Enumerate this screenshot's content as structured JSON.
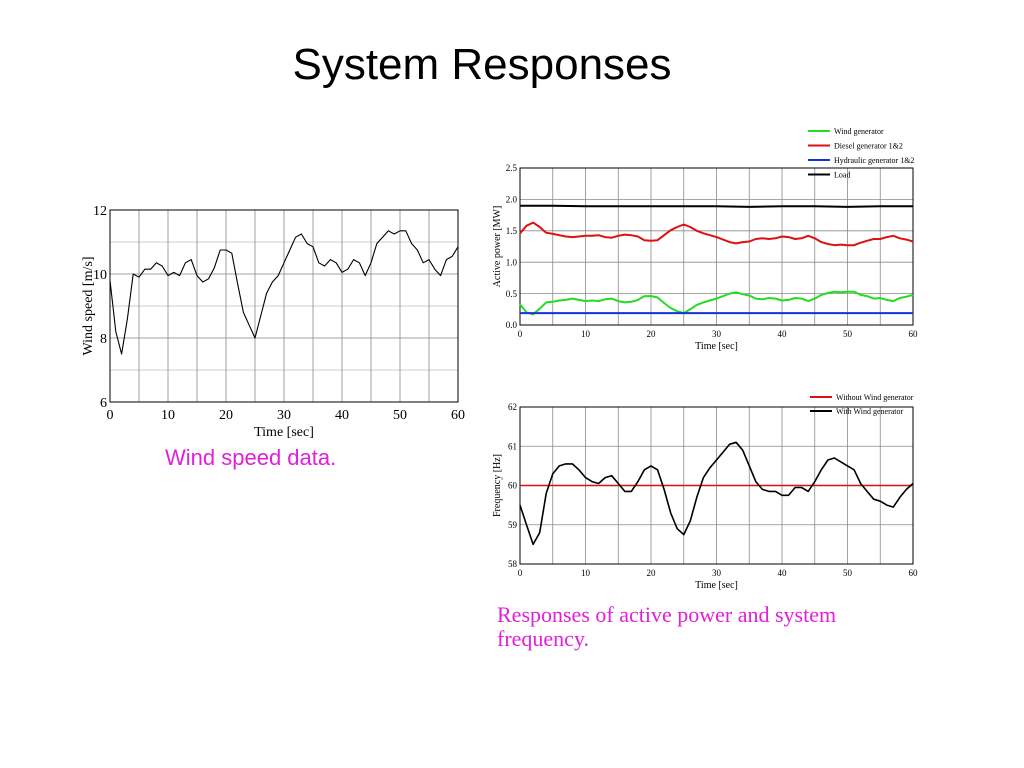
{
  "title": "System Responses",
  "captions": {
    "wind": "Wind speed data.",
    "responses": "Responses of active power and system frequency."
  },
  "chart_data": [
    {
      "type": "line",
      "title": "",
      "xlabel": "Time [sec]",
      "ylabel": "Wind speed [m/s]",
      "xlim": [
        0,
        60
      ],
      "ylim": [
        6,
        12
      ],
      "xticks": [
        0,
        10,
        20,
        30,
        40,
        50,
        60
      ],
      "yticks": [
        6,
        8,
        10,
        12
      ],
      "grid": true,
      "series": [
        {
          "color": "#000000",
          "x": [
            0,
            1,
            2,
            3,
            4,
            5,
            6,
            7,
            8,
            9,
            10,
            11,
            12,
            13,
            14,
            15,
            16,
            17,
            18,
            19,
            20,
            21,
            22,
            23,
            24,
            25,
            26,
            27,
            28,
            29,
            30,
            31,
            32,
            33,
            34,
            35,
            36,
            37,
            38,
            39,
            40,
            41,
            42,
            43,
            44,
            45,
            46,
            47,
            48,
            49,
            50,
            51,
            52,
            53,
            54,
            55,
            56,
            57,
            58,
            59,
            60
          ],
          "y": [
            9.8,
            8.2,
            7.5,
            8.6,
            10.0,
            9.9,
            10.15,
            10.15,
            10.35,
            10.25,
            9.95,
            10.05,
            9.95,
            10.35,
            10.45,
            9.95,
            9.75,
            9.85,
            10.2,
            10.75,
            10.75,
            10.65,
            9.7,
            8.8,
            8.4,
            8.0,
            8.7,
            9.4,
            9.75,
            9.95,
            10.35,
            10.75,
            11.15,
            11.25,
            10.95,
            10.85,
            10.35,
            10.25,
            10.45,
            10.35,
            10.05,
            10.15,
            10.45,
            10.35,
            9.95,
            10.35,
            10.95,
            11.15,
            11.35,
            11.25,
            11.35,
            11.35,
            10.95,
            10.75,
            10.35,
            10.45,
            10.15,
            9.95,
            10.45,
            10.55,
            10.85
          ]
        }
      ]
    },
    {
      "type": "line",
      "title": "",
      "xlabel": "Time [sec]",
      "ylabel": "Active power [MW]",
      "xlim": [
        0,
        60
      ],
      "ylim": [
        0,
        2.5
      ],
      "xticks": [
        0,
        10,
        20,
        30,
        40,
        50,
        60
      ],
      "yticks": [
        0,
        0.5,
        1.0,
        1.5,
        2.0,
        2.5
      ],
      "ytick_labels": [
        "0.0",
        "0.5",
        "1.0",
        "1.5",
        "2.0",
        "2.5"
      ],
      "grid": true,
      "legend": "top-right, outside",
      "series": [
        {
          "name": "Wind generator",
          "color": "#22dd22",
          "x": [
            0,
            1,
            2,
            3,
            4,
            5,
            6,
            7,
            8,
            9,
            10,
            11,
            12,
            13,
            14,
            15,
            16,
            17,
            18,
            19,
            20,
            21,
            22,
            23,
            24,
            25,
            26,
            27,
            28,
            29,
            30,
            31,
            32,
            33,
            34,
            35,
            36,
            37,
            38,
            39,
            40,
            41,
            42,
            43,
            44,
            45,
            46,
            47,
            48,
            49,
            50,
            51,
            52,
            53,
            54,
            55,
            56,
            57,
            58,
            59,
            60
          ],
          "y": [
            0.33,
            0.2,
            0.17,
            0.26,
            0.36,
            0.37,
            0.39,
            0.4,
            0.42,
            0.4,
            0.38,
            0.39,
            0.38,
            0.41,
            0.42,
            0.38,
            0.36,
            0.37,
            0.4,
            0.46,
            0.46,
            0.44,
            0.35,
            0.27,
            0.22,
            0.19,
            0.25,
            0.32,
            0.36,
            0.39,
            0.42,
            0.46,
            0.5,
            0.52,
            0.49,
            0.47,
            0.42,
            0.41,
            0.43,
            0.42,
            0.39,
            0.4,
            0.43,
            0.42,
            0.38,
            0.42,
            0.48,
            0.51,
            0.53,
            0.52,
            0.53,
            0.53,
            0.48,
            0.46,
            0.42,
            0.43,
            0.4,
            0.38,
            0.43,
            0.45,
            0.48
          ]
        },
        {
          "name": "Diesel generator 1&2",
          "color": "#dd1111",
          "x": [
            0,
            1,
            2,
            3,
            4,
            5,
            6,
            7,
            8,
            9,
            10,
            11,
            12,
            13,
            14,
            15,
            16,
            17,
            18,
            19,
            20,
            21,
            22,
            23,
            24,
            25,
            26,
            27,
            28,
            29,
            30,
            31,
            32,
            33,
            34,
            35,
            36,
            37,
            38,
            39,
            40,
            41,
            42,
            43,
            44,
            45,
            46,
            47,
            48,
            49,
            50,
            51,
            52,
            53,
            54,
            55,
            56,
            57,
            58,
            59,
            60
          ],
          "y": [
            1.46,
            1.58,
            1.63,
            1.56,
            1.47,
            1.45,
            1.43,
            1.41,
            1.4,
            1.41,
            1.42,
            1.42,
            1.43,
            1.4,
            1.39,
            1.42,
            1.44,
            1.43,
            1.41,
            1.35,
            1.34,
            1.35,
            1.43,
            1.51,
            1.56,
            1.6,
            1.56,
            1.5,
            1.46,
            1.43,
            1.4,
            1.36,
            1.32,
            1.3,
            1.32,
            1.33,
            1.37,
            1.38,
            1.37,
            1.38,
            1.41,
            1.4,
            1.37,
            1.38,
            1.42,
            1.38,
            1.32,
            1.29,
            1.27,
            1.28,
            1.27,
            1.27,
            1.31,
            1.34,
            1.37,
            1.37,
            1.4,
            1.42,
            1.38,
            1.36,
            1.33
          ]
        },
        {
          "name": "Hydraulic generator 1&2",
          "color": "#1133dd",
          "x": [
            0,
            10,
            20,
            30,
            40,
            50,
            60
          ],
          "y": [
            0.19,
            0.19,
            0.19,
            0.19,
            0.19,
            0.19,
            0.19
          ]
        },
        {
          "name": "Load",
          "color": "#000000",
          "x": [
            0,
            5,
            10,
            15,
            20,
            25,
            30,
            35,
            40,
            45,
            50,
            55,
            60
          ],
          "y": [
            1.9,
            1.9,
            1.89,
            1.89,
            1.89,
            1.89,
            1.89,
            1.88,
            1.89,
            1.89,
            1.88,
            1.89,
            1.89
          ]
        }
      ]
    },
    {
      "type": "line",
      "title": "",
      "xlabel": "Time [sec]",
      "ylabel": "Frequency [Hz]",
      "xlim": [
        0,
        60
      ],
      "ylim": [
        58,
        62
      ],
      "xticks": [
        0,
        10,
        20,
        30,
        40,
        50,
        60
      ],
      "yticks": [
        58,
        59,
        60,
        61,
        62
      ],
      "grid": true,
      "legend": "top-right, outside",
      "series": [
        {
          "name": "Without Wind generator",
          "color": "#dd1111",
          "x": [
            0,
            60
          ],
          "y": [
            60,
            60
          ]
        },
        {
          "name": "With Wind generator",
          "color": "#000000",
          "x": [
            0,
            1,
            2,
            3,
            4,
            5,
            6,
            7,
            8,
            9,
            10,
            11,
            12,
            13,
            14,
            15,
            16,
            17,
            18,
            19,
            20,
            21,
            22,
            23,
            24,
            25,
            26,
            27,
            28,
            29,
            30,
            31,
            32,
            33,
            34,
            35,
            36,
            37,
            38,
            39,
            40,
            41,
            42,
            43,
            44,
            45,
            46,
            47,
            48,
            49,
            50,
            51,
            52,
            53,
            54,
            55,
            56,
            57,
            58,
            59,
            60
          ],
          "y": [
            59.5,
            59.0,
            58.5,
            58.8,
            59.8,
            60.3,
            60.5,
            60.55,
            60.55,
            60.4,
            60.2,
            60.1,
            60.05,
            60.2,
            60.25,
            60.05,
            59.85,
            59.85,
            60.1,
            60.4,
            60.5,
            60.4,
            59.9,
            59.3,
            58.9,
            58.75,
            59.1,
            59.7,
            60.2,
            60.45,
            60.65,
            60.85,
            61.05,
            61.1,
            60.9,
            60.5,
            60.1,
            59.9,
            59.85,
            59.85,
            59.75,
            59.75,
            59.95,
            59.95,
            59.85,
            60.1,
            60.4,
            60.65,
            60.7,
            60.6,
            60.5,
            60.4,
            60.05,
            59.85,
            59.65,
            59.6,
            59.5,
            59.45,
            59.7,
            59.9,
            60.05
          ]
        }
      ]
    }
  ]
}
